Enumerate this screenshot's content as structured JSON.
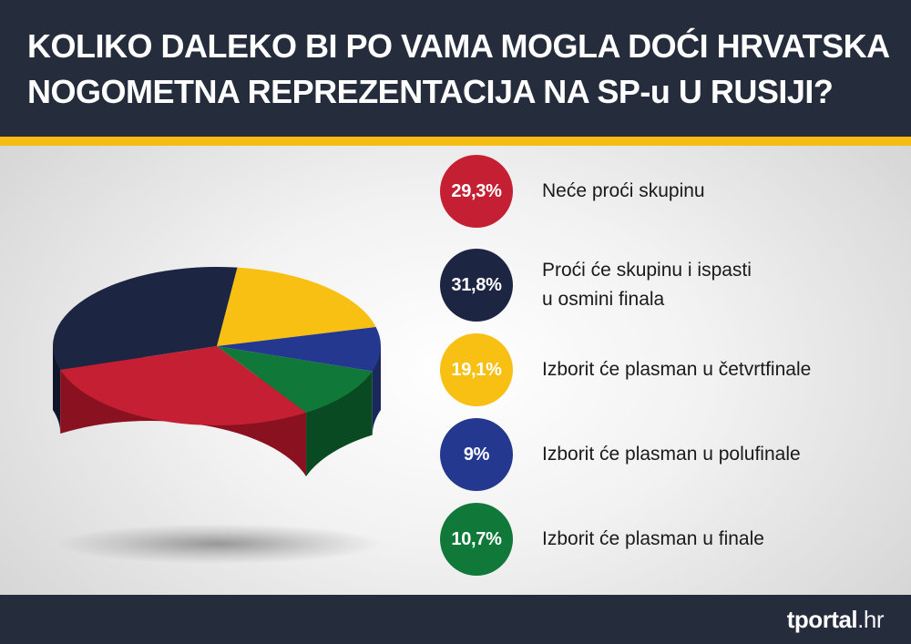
{
  "header": {
    "title_line1": "KOLIKO DALEKO BI PO VAMA MOGLA DOĆI HRVATSKA",
    "title_line2": "NOGOMETNA REPREZENTACIJA NA SP-u U RUSIJI?"
  },
  "footer": {
    "logo_main": "tportal",
    "logo_suffix": ".hr"
  },
  "colors": {
    "header_bg": "#252c3c",
    "accent_stripe": "#f7bc11"
  },
  "chart_data": {
    "type": "pie",
    "title": "KOLIKO DALEKO BI PO VAMA MOGLA DOĆI HRVATSKA NOGOMETNA REPREZENTACIJA NA SP-u U RUSIJI?",
    "unit": "%",
    "legend_position": "right",
    "slices": [
      {
        "label": "Neće proći skupinu",
        "value": 29.3,
        "display": "29,3%",
        "color": "#c41f32",
        "side_color": "#8a1220"
      },
      {
        "label": "Proći će skupinu i ispasti\nu osmini finala",
        "value": 31.8,
        "display": "31,8%",
        "color": "#1c2643",
        "side_color": "#101629"
      },
      {
        "label": "Izborit će plasman u četvrtfinale",
        "value": 19.1,
        "display": "19,1%",
        "color": "#f8c012",
        "side_color": "#c08d08"
      },
      {
        "label": "Izborit će plasman u polufinale",
        "value": 9,
        "display": "9%",
        "color": "#24388f",
        "side_color": "#1a285c"
      },
      {
        "label": "Izborit će plasman u finale",
        "value": 10.7,
        "display": "10,7%",
        "color": "#10793a",
        "side_color": "#0a4a22"
      }
    ]
  }
}
